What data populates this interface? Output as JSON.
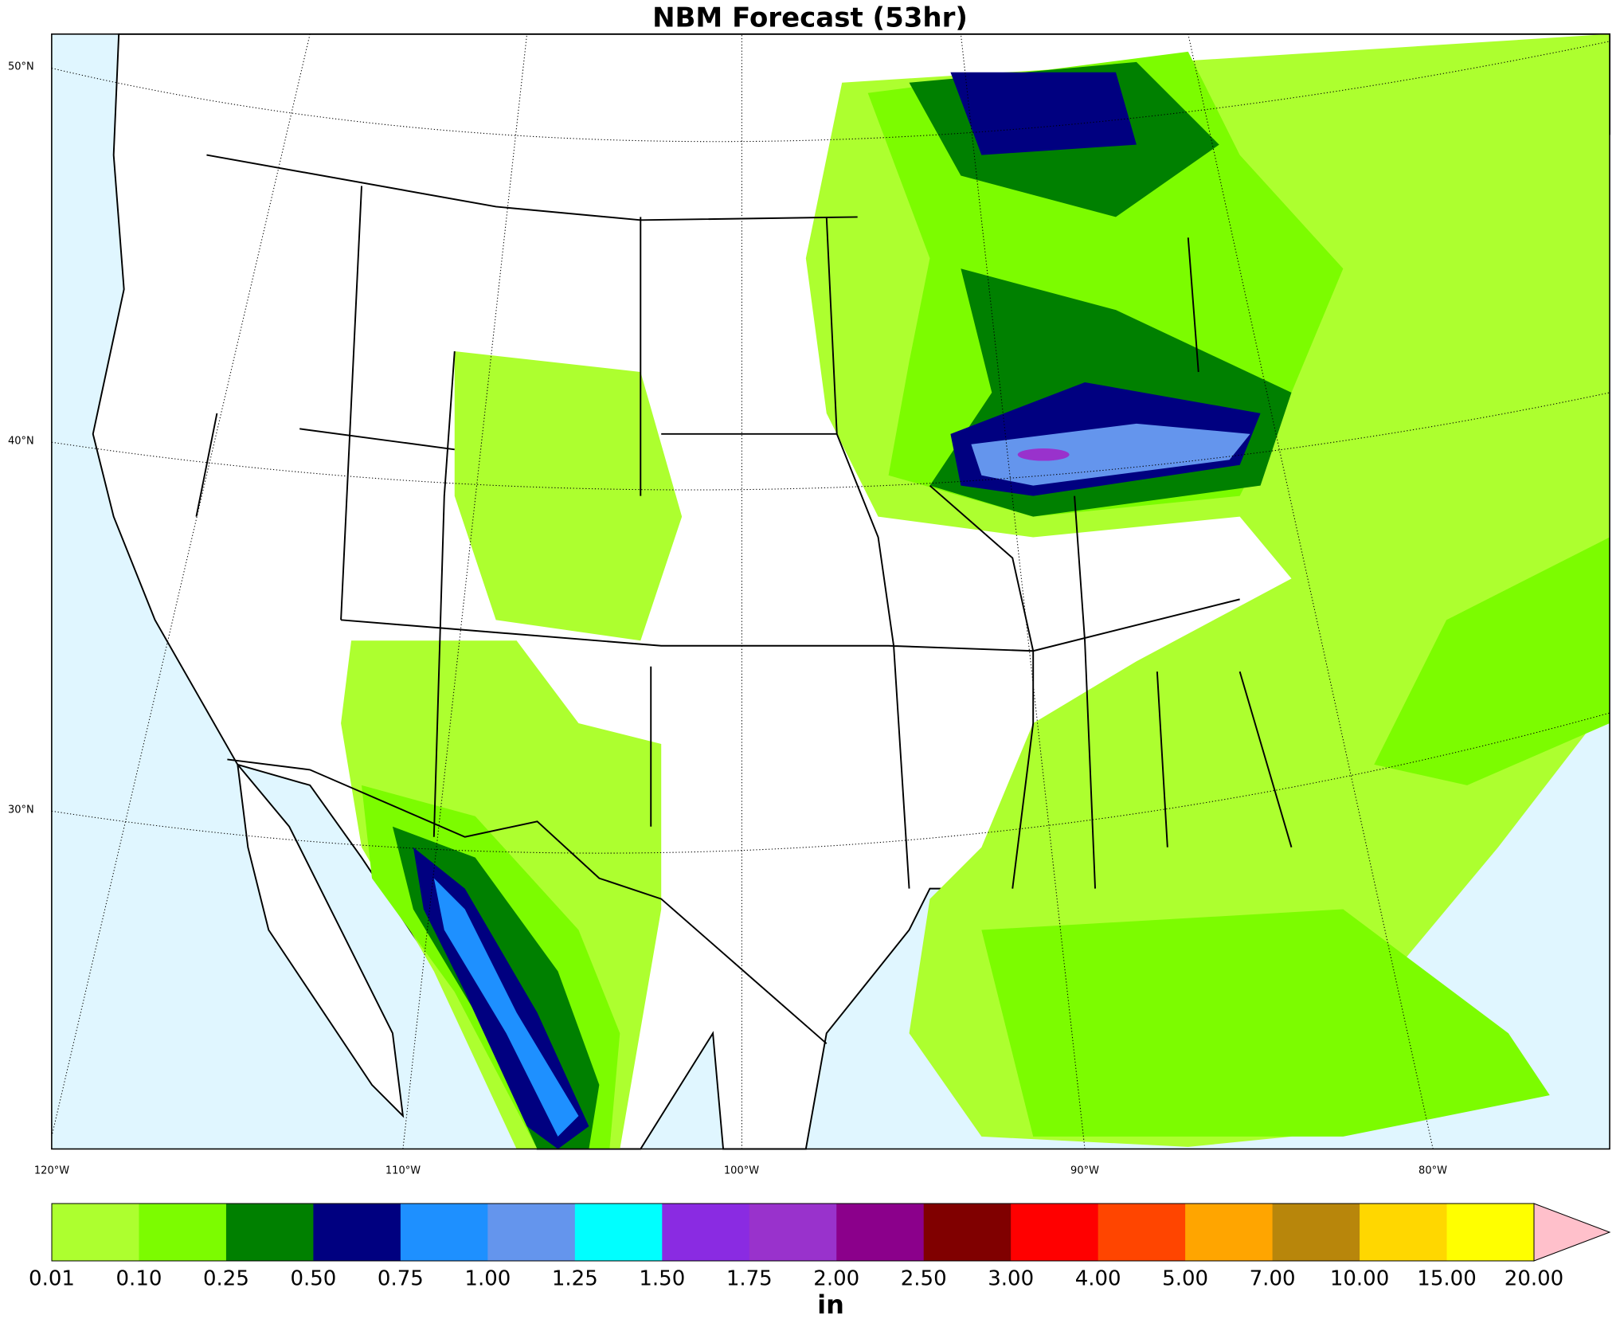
{
  "header": {
    "title": "NBM Forecast (53hr)"
  },
  "map": {
    "lat_labels": [
      "50°N",
      "40°N",
      "30°N"
    ],
    "lon_labels": [
      "120°W",
      "110°W",
      "100°W",
      "90°W",
      "80°W"
    ]
  },
  "colorbar": {
    "labels": [
      "0.01",
      "0.10",
      "0.25",
      "0.50",
      "0.75",
      "1.00",
      "1.25",
      "1.50",
      "1.75",
      "2.00",
      "2.50",
      "3.00",
      "4.00",
      "5.00",
      "7.00",
      "10.00",
      "15.00",
      "20.00"
    ],
    "colors": [
      "#adff2f",
      "#7cfc00",
      "#008000",
      "#000080",
      "#1e90ff",
      "#6495ed",
      "#00ffff",
      "#8a2be2",
      "#9932cc",
      "#8b008b",
      "#800000",
      "#ff0000",
      "#ff4500",
      "#ffa500",
      "#b8860b",
      "#ffd700",
      "#ffff00"
    ],
    "extend_color": "#ffc0cb",
    "unit": "in"
  }
}
